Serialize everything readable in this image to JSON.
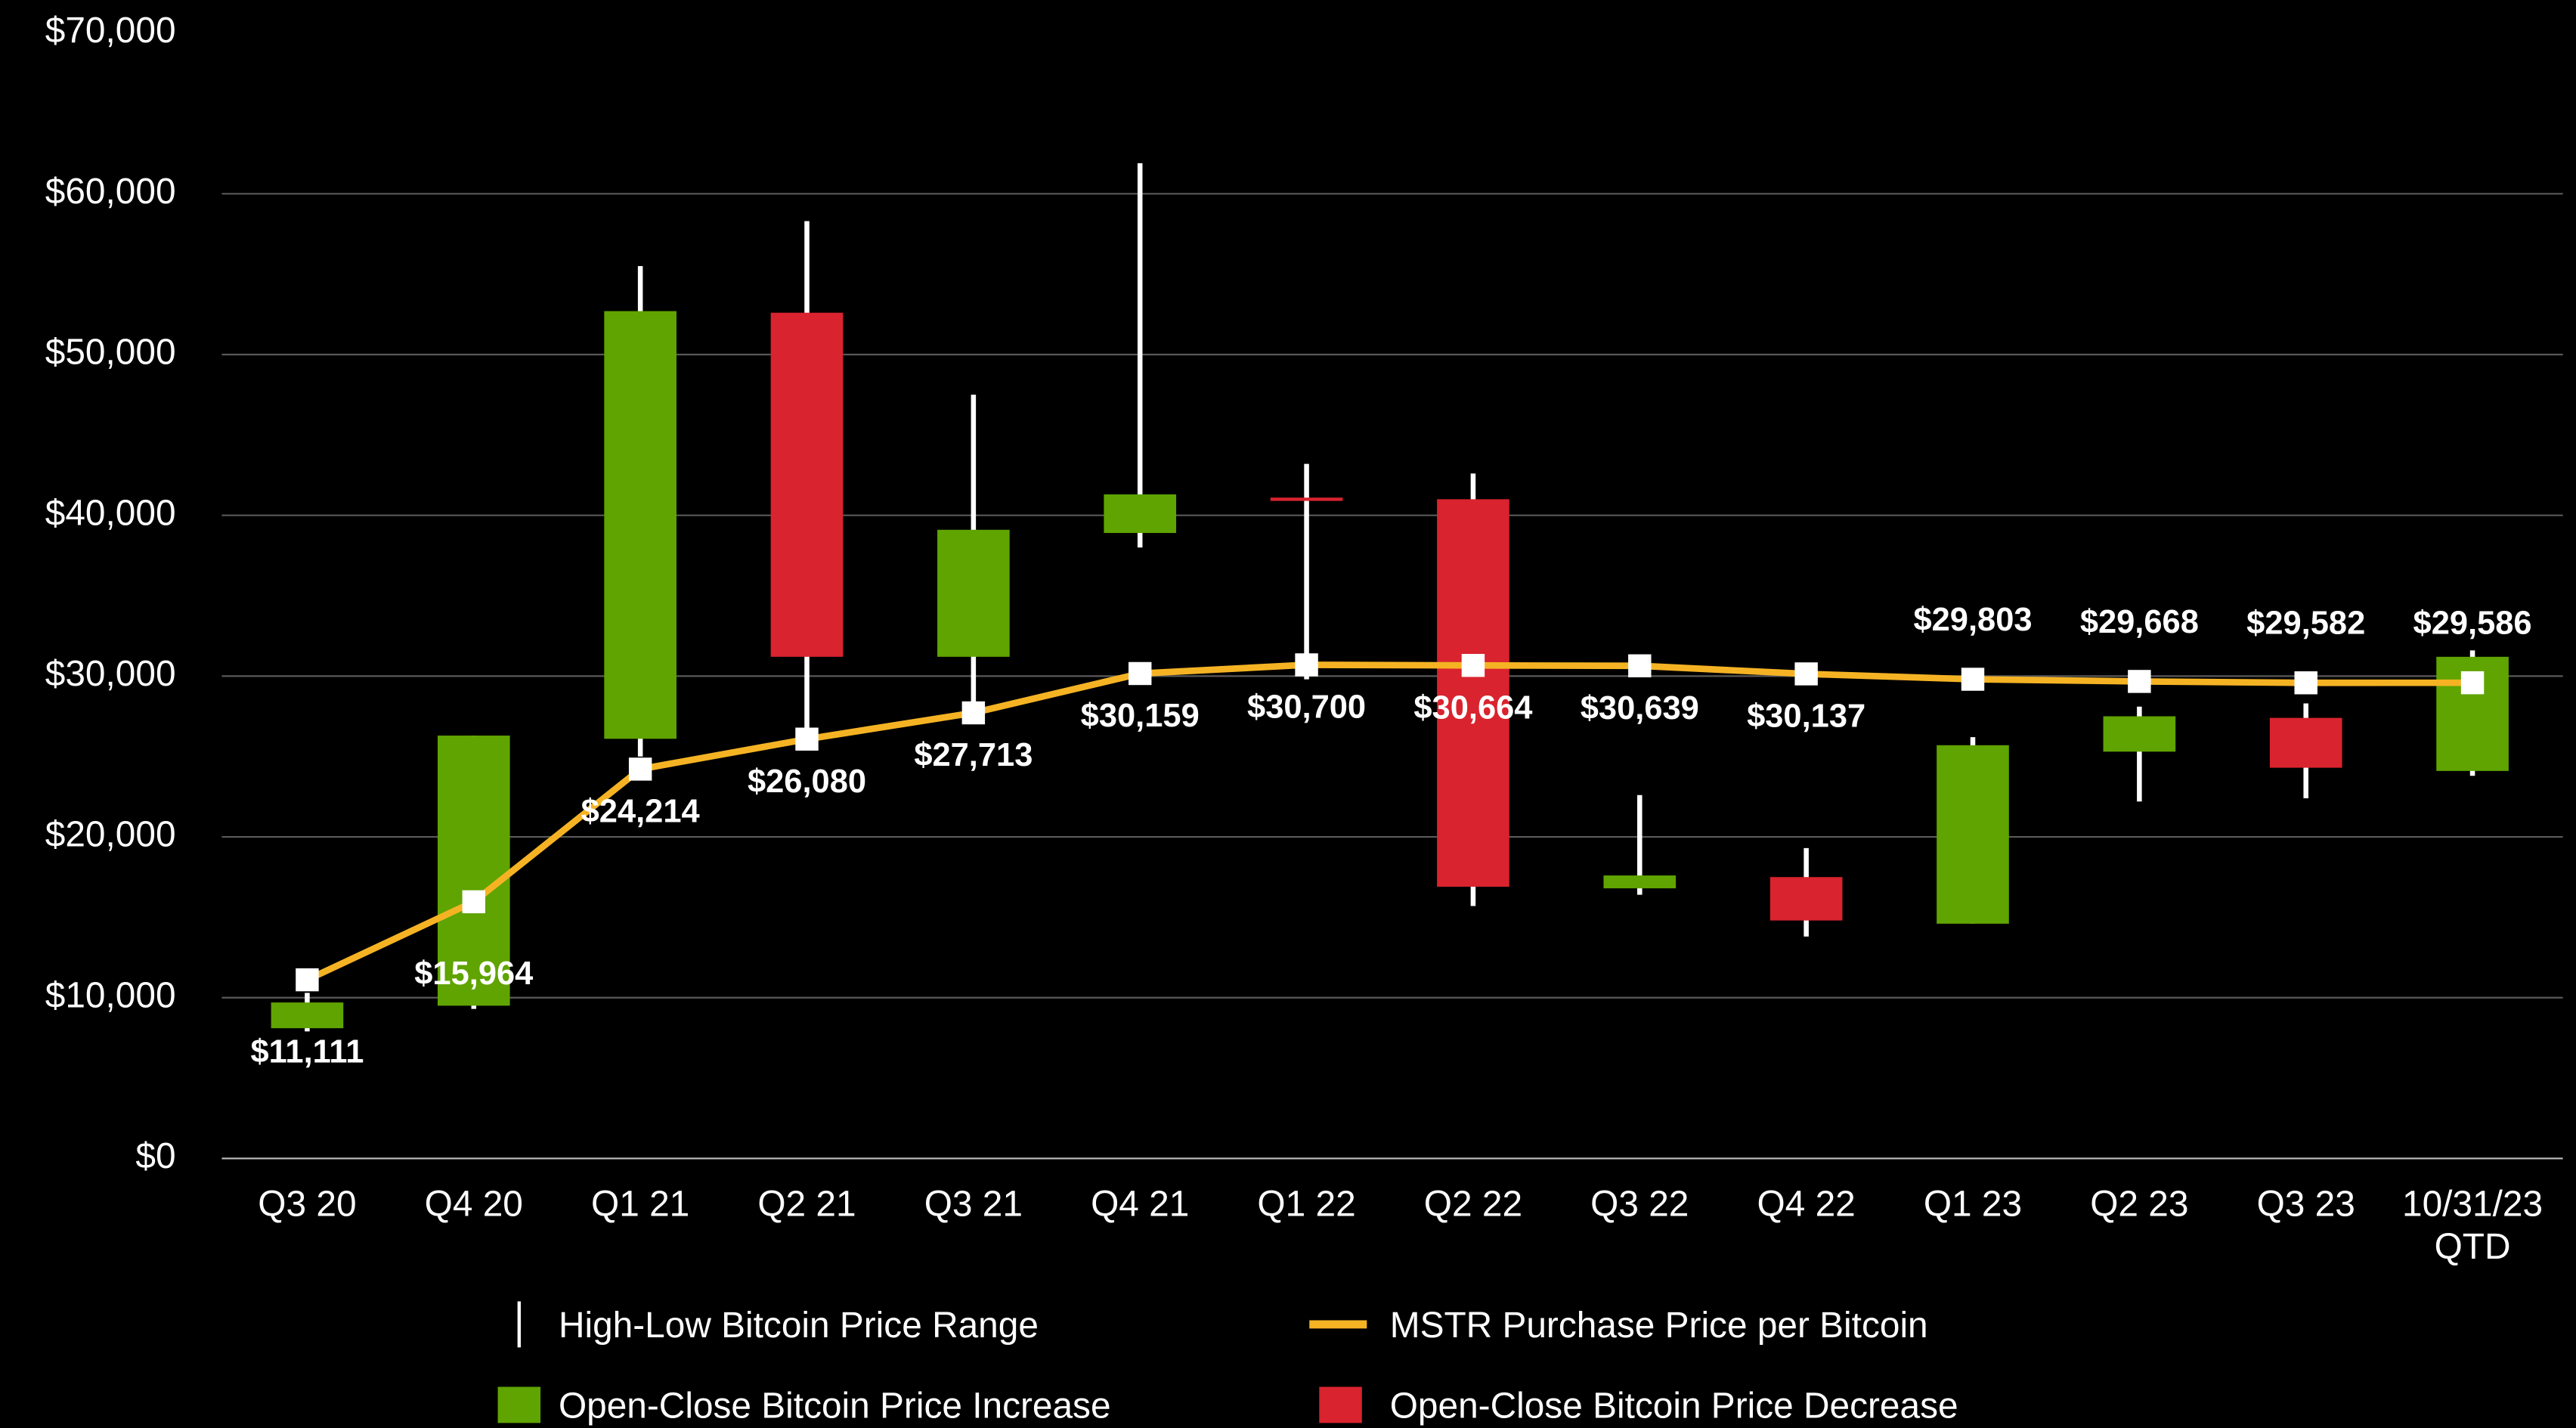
{
  "chart_data": {
    "type": "candlestick",
    "categories": [
      "Q3 20",
      "Q4 20",
      "Q1 21",
      "Q2 21",
      "Q3 21",
      "Q4 21",
      "Q1 22",
      "Q2 22",
      "Q3 22",
      "Q4 22",
      "Q1 23",
      "Q2 23",
      "Q3 23",
      "10/31/23 QTD"
    ],
    "ylim": [
      0,
      70000
    ],
    "yticks": [
      {
        "value": 0,
        "label": "$0"
      },
      {
        "value": 10000,
        "label": "$10,000"
      },
      {
        "value": 20000,
        "label": "$20,000"
      },
      {
        "value": 30000,
        "label": "$30,000"
      },
      {
        "value": 40000,
        "label": "$40,000"
      },
      {
        "value": 50000,
        "label": "$50,000"
      },
      {
        "value": 60000,
        "label": "$60,000"
      },
      {
        "value": 70000,
        "label": "$70,000"
      }
    ],
    "grid": true,
    "candles": {
      "range_name": "High-Low Bitcoin Price Range",
      "range_color": "#ffffff",
      "increase_name": "Open-Close Bitcoin Price Increase",
      "increase_color": "#5fa400",
      "decrease_name": "Open-Close Bitcoin Price Decrease",
      "decrease_color": "#d9232e",
      "open": [
        8100,
        9500,
        26100,
        52600,
        31200,
        38900,
        41100,
        41000,
        16800,
        17500,
        14600,
        25300,
        27400,
        24100
      ],
      "close": [
        9700,
        26300,
        52700,
        31200,
        39100,
        41300,
        40900,
        16900,
        17600,
        14800,
        25700,
        27500,
        24300,
        31200
      ],
      "high": [
        10300,
        26300,
        55500,
        58300,
        47500,
        61900,
        43200,
        42600,
        22600,
        19300,
        26200,
        28100,
        28300,
        31600
      ],
      "low": [
        7900,
        9300,
        25000,
        25600,
        27100,
        38000,
        29800,
        15700,
        16400,
        13800,
        14600,
        22200,
        22400,
        23800
      ]
    },
    "series": [
      {
        "name": "MSTR Purchase Price per Bitcoin",
        "color": "#f5b324",
        "values": [
          11111,
          15964,
          24214,
          26080,
          27713,
          30159,
          30700,
          30664,
          30639,
          30137,
          29803,
          29668,
          29582,
          29586
        ],
        "value_labels": [
          "$11,111",
          "$15,964",
          "$24,214",
          "$26,080",
          "$27,713",
          "$30,159",
          "$30,700",
          "$30,664",
          "$30,639",
          "$30,137",
          "$29,803",
          "$29,668",
          "$29,582",
          "$29,586"
        ]
      }
    ]
  }
}
